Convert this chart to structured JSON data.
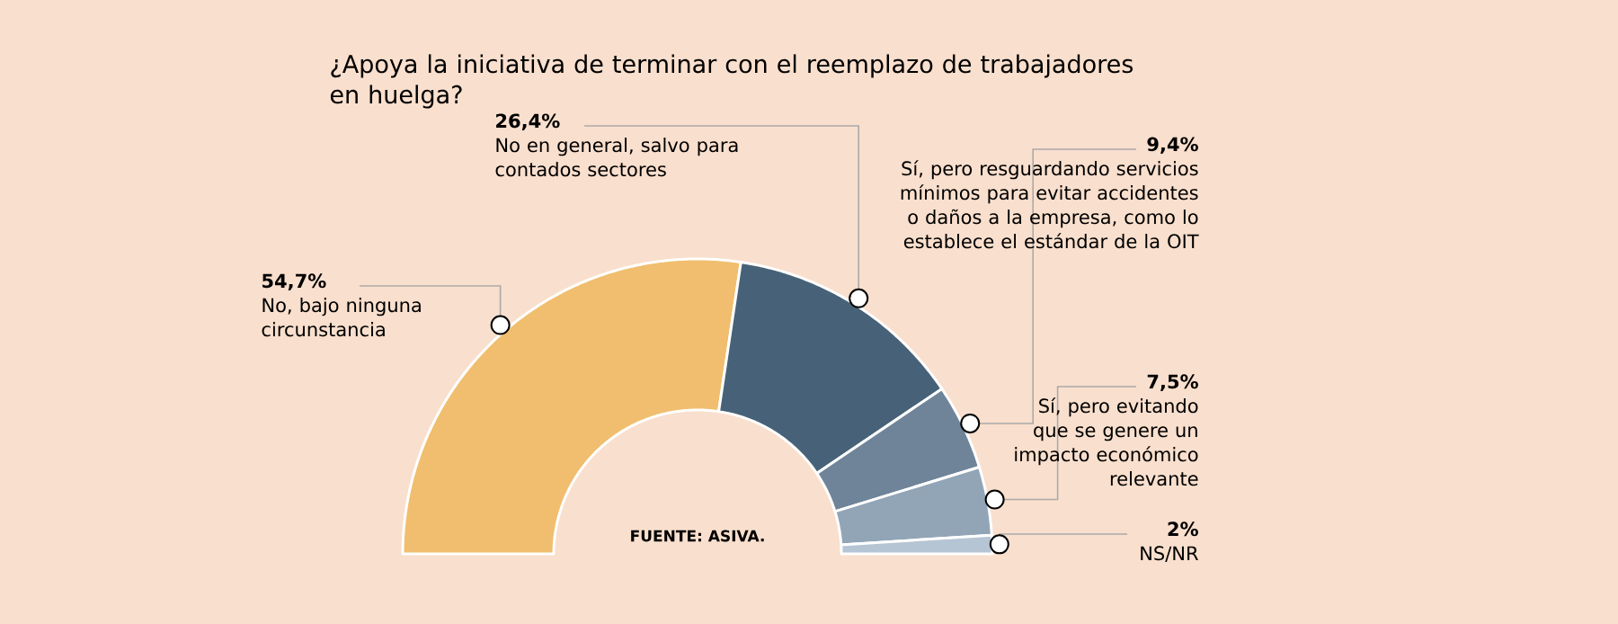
{
  "chart_data": {
    "type": "donut",
    "title": "¿Apoya la iniciativa de terminar con el reemplazo de trabajadores en huelga?",
    "categories": [
      "No, bajo ninguna circunstancia",
      "No en general, salvo para contados sectores",
      "Sí, pero resguardando servicios mínimos para evitar accidentes o daños a la empresa, como lo establece el estándar de la OIT",
      "Sí, pero evitando que se genere un impacto económico relevante",
      "NS/NR"
    ],
    "values": [
      54.7,
      26.4,
      9.4,
      7.5,
      2
    ],
    "value_labels": [
      "54,7%",
      "26,4%",
      "9,4%",
      "7,5%",
      "2%"
    ],
    "colors": [
      "#f0be6e",
      "#476278",
      "#6f8499",
      "#92a5b7",
      "#b6c5d3"
    ],
    "annotations": [
      "FUENTE: ASIVA."
    ],
    "legend": false
  }
}
